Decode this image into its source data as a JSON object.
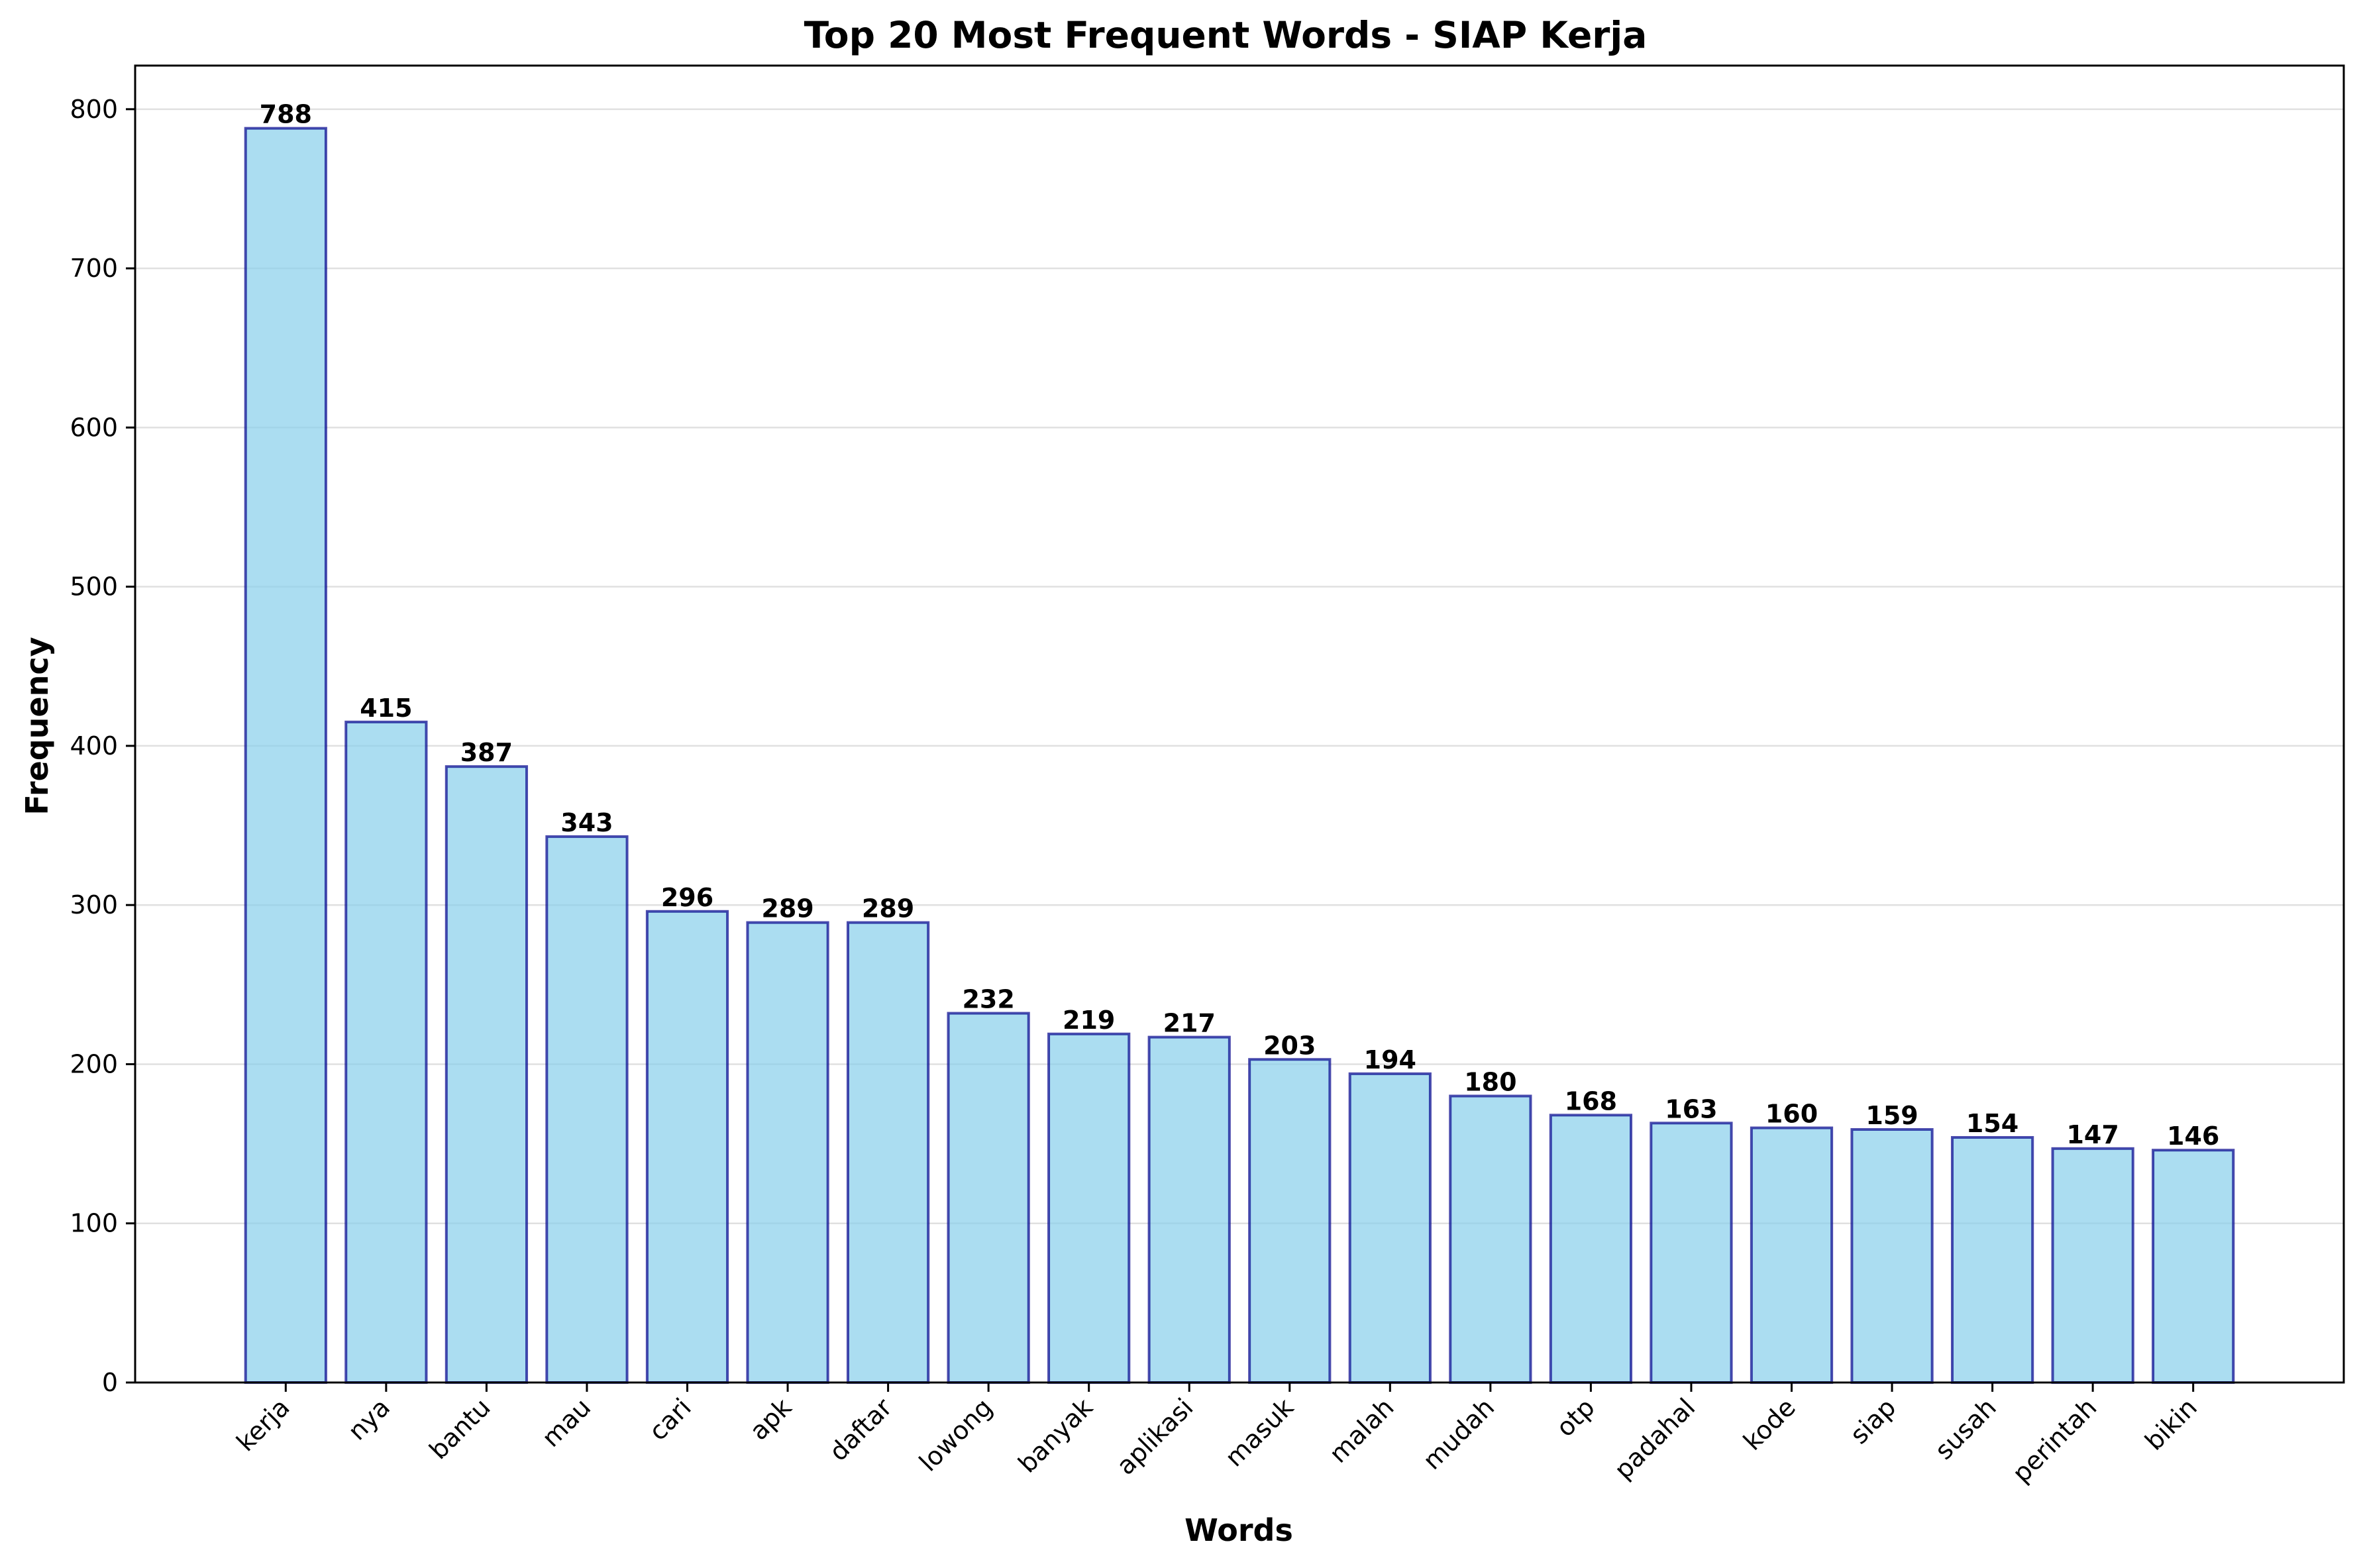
{
  "chart_data": {
    "type": "bar",
    "title": "Top 20 Most Frequent Words - SIAP Kerja",
    "xlabel": "Words",
    "ylabel": "Frequency",
    "categories": [
      "kerja",
      "nya",
      "bantu",
      "mau",
      "cari",
      "apk",
      "daftar",
      "lowong",
      "banyak",
      "aplikasi",
      "masuk",
      "malah",
      "mudah",
      "otp",
      "padahal",
      "kode",
      "siap",
      "susah",
      "perintah",
      "bikin"
    ],
    "values": [
      788,
      415,
      387,
      343,
      296,
      289,
      289,
      232,
      219,
      217,
      203,
      194,
      180,
      168,
      163,
      160,
      159,
      154,
      147,
      146
    ],
    "ylim": [
      0,
      827.4
    ],
    "yticks": [
      0,
      100,
      200,
      300,
      400,
      500,
      600,
      700,
      800
    ],
    "grid": "horizontal",
    "data_labels": true,
    "x_tick_rotation": 45,
    "colors": {
      "bar_fill": "#87ceeb",
      "bar_fill_opacity": 0.7,
      "bar_edge": "#00008b",
      "grid": "#e0e0e0",
      "axis": "#000000"
    }
  }
}
